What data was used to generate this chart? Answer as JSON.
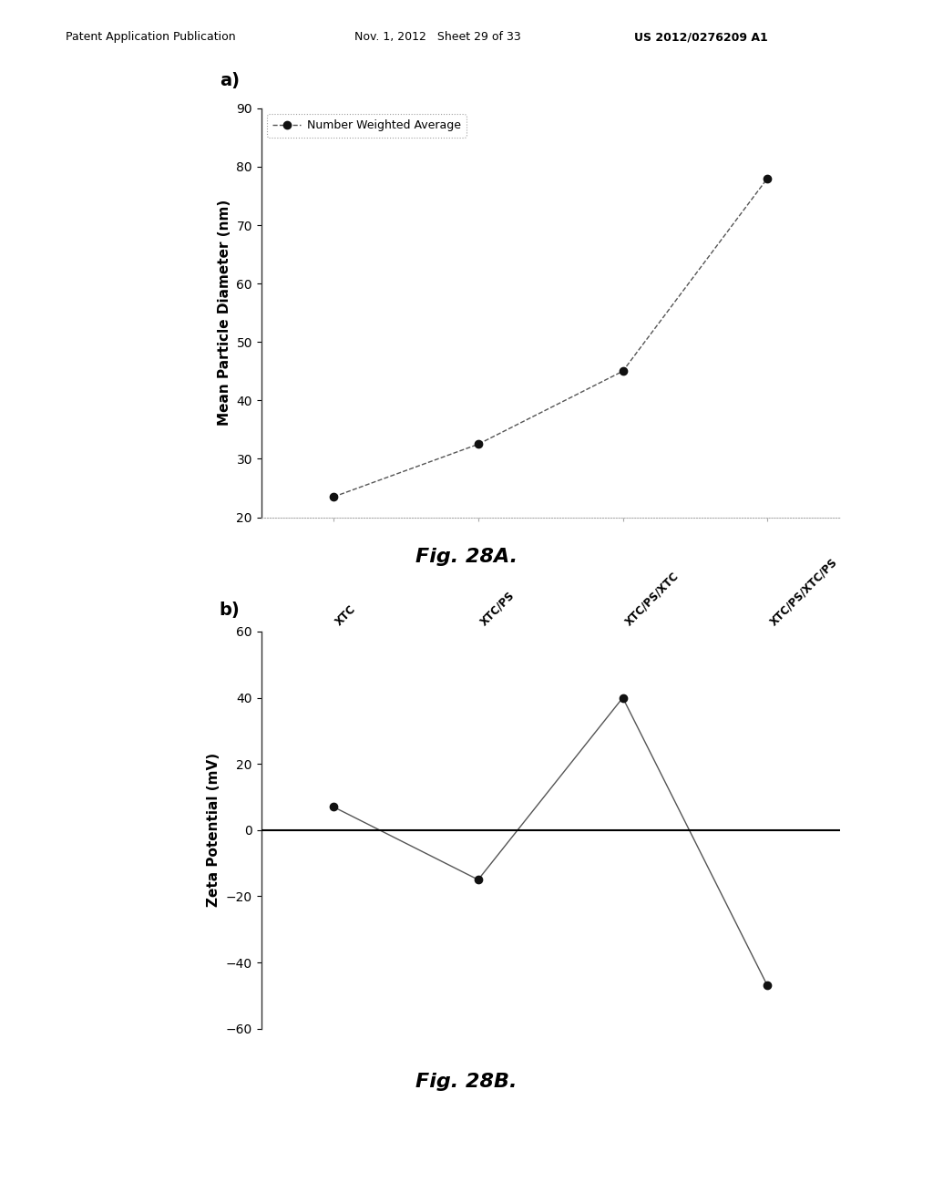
{
  "fig_a_label": "a)",
  "fig_b_label": "b)",
  "fig28a_caption": "Fig. 28A.",
  "fig28b_caption": "Fig. 28B.",
  "header_left": "Patent Application Publication",
  "header_mid": "Nov. 1, 2012   Sheet 29 of 33",
  "header_right": "US 2012/0276209 A1",
  "plot_a": {
    "x": [
      1,
      2,
      3,
      4
    ],
    "y": [
      23.5,
      32.5,
      45.0,
      78.0
    ],
    "ylim": [
      20,
      90
    ],
    "yticks": [
      20,
      30,
      40,
      50,
      60,
      70,
      80,
      90
    ],
    "ylabel": "Mean Particle Diameter (nm)",
    "legend_label": "Number Weighted Average",
    "line_color": "#555555",
    "marker_color": "#111111",
    "marker_size": 6,
    "line_style": "--"
  },
  "plot_b": {
    "x": [
      1,
      2,
      3,
      4
    ],
    "y": [
      7.0,
      -15.0,
      40.0,
      -47.0
    ],
    "ylim": [
      -60,
      60
    ],
    "yticks": [
      -60,
      -40,
      -20,
      0,
      20,
      40,
      60
    ],
    "ylabel": "Zeta Potential (mV)",
    "xtick_labels": [
      "XTC",
      "XTC/PS",
      "XTC/PS/XTC",
      "XTC/PS/XTC/PS"
    ],
    "line_color": "#555555",
    "marker_color": "#111111",
    "marker_size": 6,
    "hline_y": 0,
    "hline_color": "#000000"
  },
  "background_color": "#ffffff",
  "label_fontsize": 11,
  "tick_fontsize": 10,
  "caption_fontsize": 16,
  "header_fontsize": 9,
  "fig_label_fontsize": 14
}
